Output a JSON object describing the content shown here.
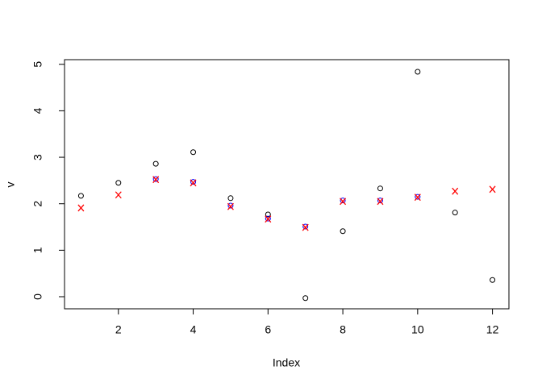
{
  "chart_data": {
    "type": "scatter",
    "x_label": "Index",
    "y_label": "v",
    "x": [
      1,
      2,
      3,
      4,
      5,
      6,
      7,
      8,
      9,
      10,
      11,
      12
    ],
    "series": [
      {
        "color": "#000000",
        "marker": "circle",
        "values": [
          2.17,
          2.45,
          2.86,
          3.11,
          2.12,
          1.77,
          -0.03,
          1.41,
          2.33,
          4.84,
          1.81,
          0.36
        ]
      },
      {
        "color": "#0000ff",
        "marker": "circle",
        "values": [
          null,
          null,
          2.53,
          2.47,
          1.96,
          1.68,
          1.51,
          2.07,
          2.07,
          2.15,
          null,
          null
        ]
      },
      {
        "color": "#ff0000",
        "marker": "x",
        "values": [
          1.91,
          2.19,
          2.52,
          2.45,
          1.94,
          1.67,
          1.49,
          2.05,
          2.05,
          2.14,
          2.27,
          2.31
        ]
      }
    ],
    "xlim": [
      0.56,
      12.44
    ],
    "ylim": [
      -0.26,
      5.1
    ],
    "xticks": [
      2,
      4,
      6,
      8,
      10,
      12
    ],
    "yticks": [
      0,
      1,
      2,
      3,
      4,
      5
    ]
  }
}
